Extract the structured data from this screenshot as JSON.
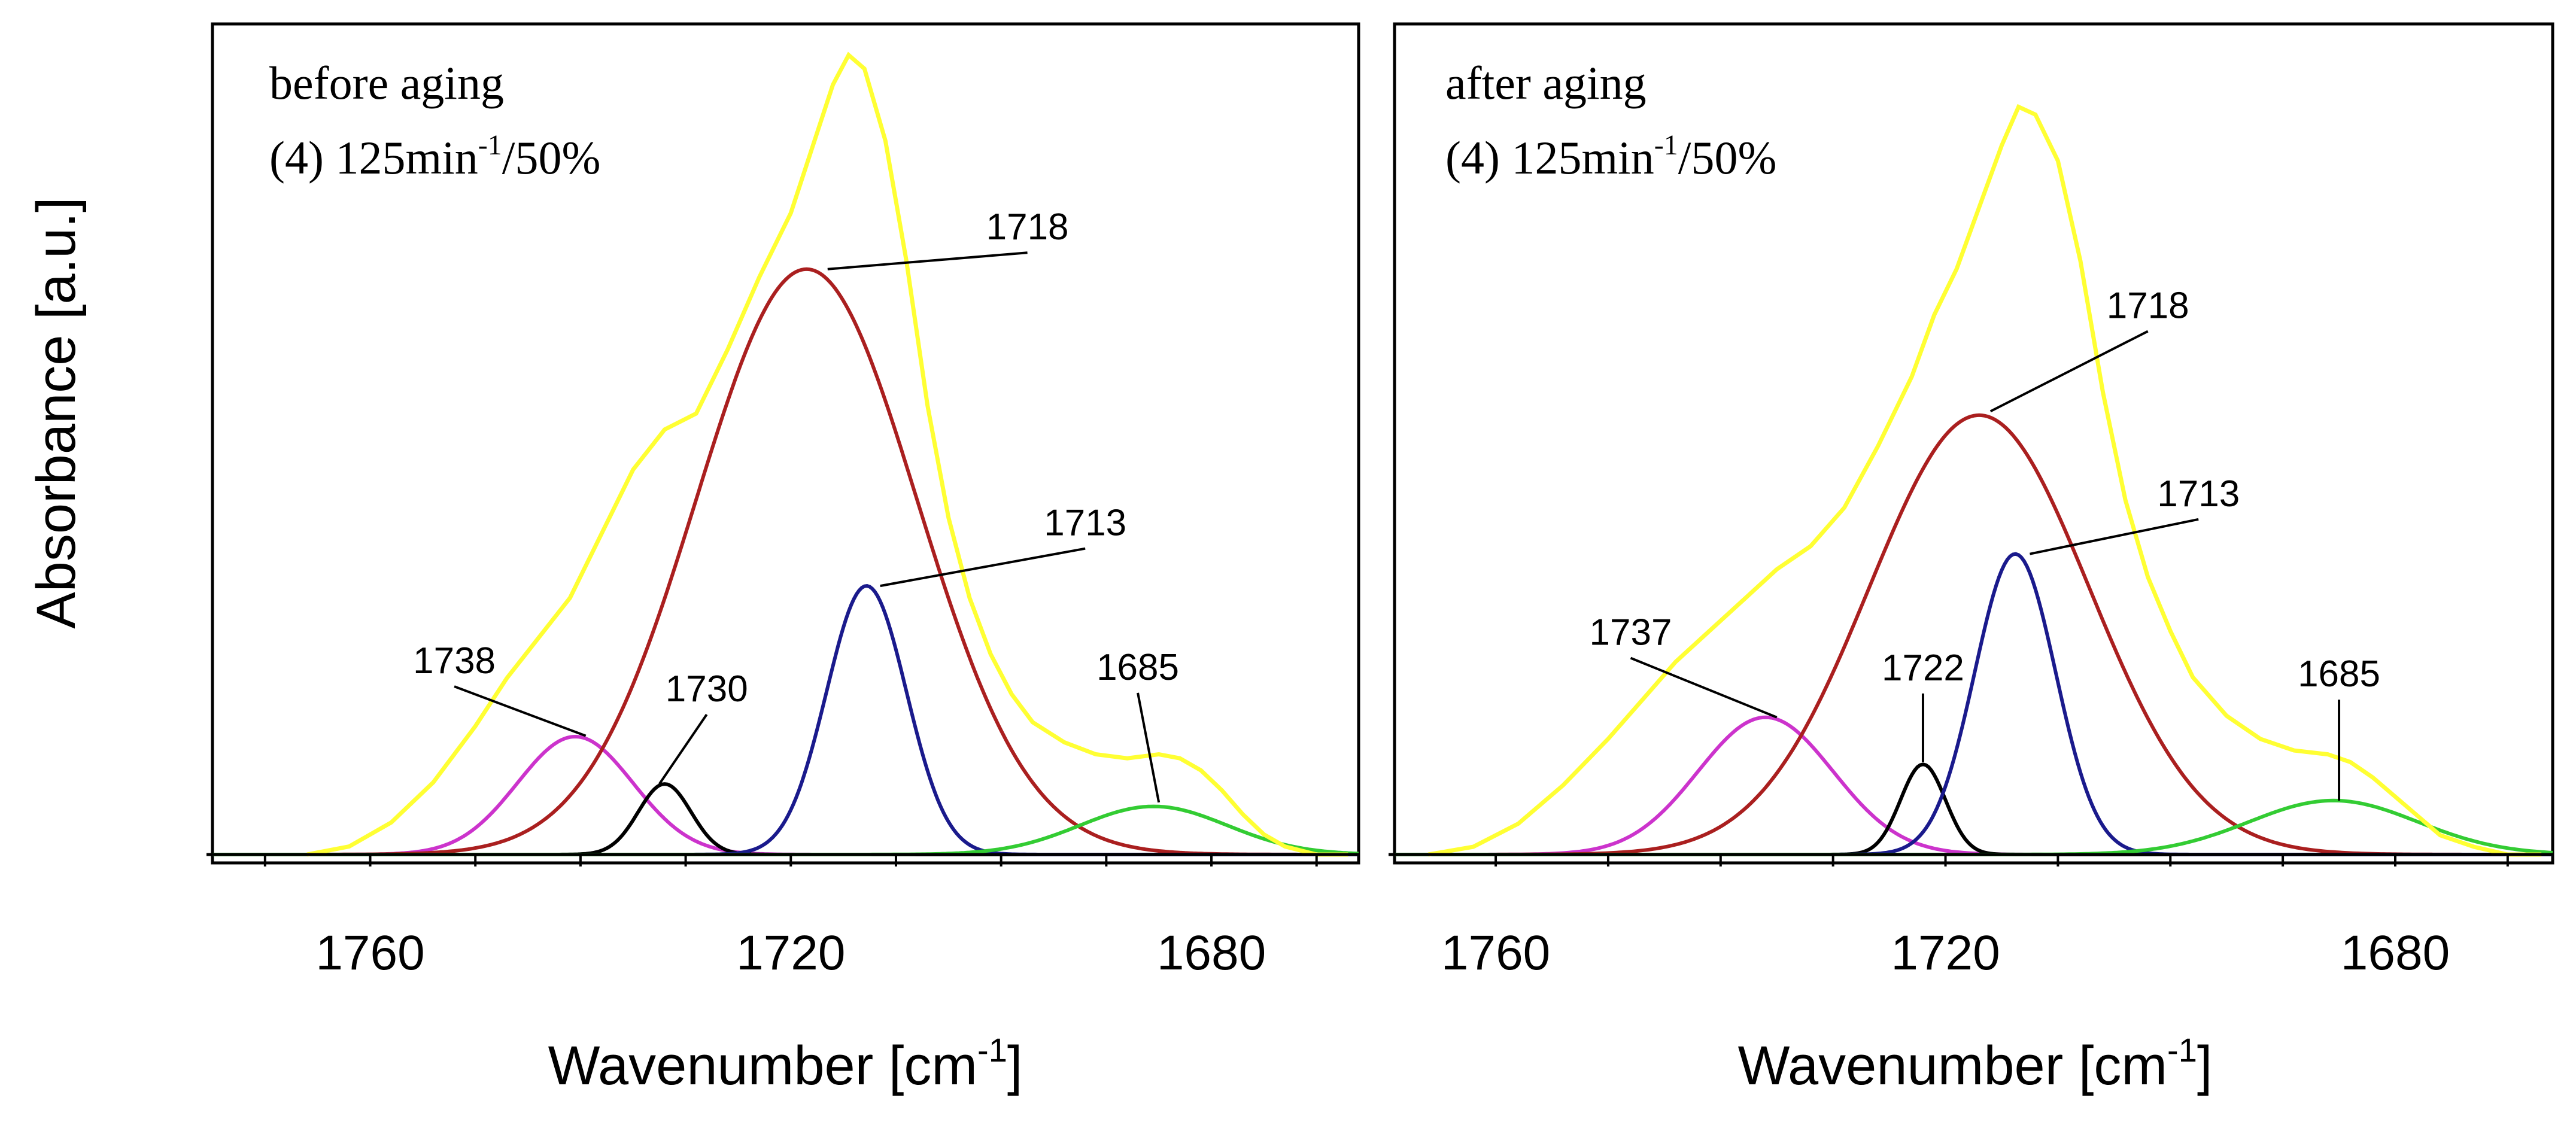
{
  "chart_data": [
    {
      "type": "line",
      "panel": "left",
      "title_line1": "before aging",
      "title_line2_prefix": "(4) 125min",
      "title_line2_sup": "-1",
      "title_line2_suffix": "/50%",
      "xlabel": "Wavenumber [cm",
      "xlabel_sup": "-1",
      "xlabel_close": "]",
      "ylabel": "Absorbance [a.u.]",
      "xlim": [
        1775,
        1666
      ],
      "ylim": [
        0,
        1.0
      ],
      "ticks": [
        1760,
        1720,
        1680
      ],
      "tick_labels": [
        "1760",
        "1720",
        "1680"
      ],
      "envelope": {
        "name": "sum",
        "color": "#ffff33",
        "x": [
          1766,
          1762,
          1758,
          1754,
          1750,
          1747,
          1744,
          1741,
          1738,
          1735,
          1732,
          1729,
          1726,
          1723,
          1720,
          1718,
          1716,
          1714.5,
          1713,
          1711,
          1709,
          1707,
          1705,
          1703,
          1701,
          1699,
          1697,
          1694,
          1691,
          1688,
          1685,
          1683,
          1681,
          1679,
          1677,
          1675,
          1673,
          1670,
          1667
        ],
        "y": [
          0.0,
          0.01,
          0.04,
          0.09,
          0.16,
          0.22,
          0.27,
          0.32,
          0.4,
          0.48,
          0.53,
          0.55,
          0.63,
          0.72,
          0.8,
          0.88,
          0.96,
          0.997,
          0.98,
          0.89,
          0.74,
          0.56,
          0.42,
          0.32,
          0.25,
          0.2,
          0.165,
          0.14,
          0.125,
          0.12,
          0.125,
          0.12,
          0.105,
          0.08,
          0.05,
          0.025,
          0.01,
          0.0,
          0.0
        ]
      },
      "peaks": [
        {
          "name": "1738",
          "center": 1740.5,
          "height": 0.147,
          "width": 5.5,
          "color": "#cc33cc"
        },
        {
          "name": "1730",
          "center": 1732.0,
          "height": 0.088,
          "width": 2.5,
          "color": "#000000"
        },
        {
          "name": "1718",
          "center": 1718.5,
          "height": 0.73,
          "width": 10.5,
          "color": "#aa1f1f"
        },
        {
          "name": "1713",
          "center": 1712.8,
          "height": 0.335,
          "width": 3.8,
          "color": "#1a1a8c"
        },
        {
          "name": "1685",
          "center": 1685.5,
          "height": 0.06,
          "width": 7.0,
          "color": "#33cc33"
        }
      ],
      "annotations": [
        {
          "label": "1738",
          "tip": [
            1739.5,
            0.148
          ],
          "text_at": [
            1752.0,
            0.226
          ]
        },
        {
          "label": "1730",
          "tip": [
            1732.5,
            0.088
          ],
          "text_at": [
            1728.0,
            0.191
          ]
        },
        {
          "label": "1718",
          "tip": [
            1716.5,
            0.73
          ],
          "text_at": [
            1697.5,
            0.767
          ]
        },
        {
          "label": "1713",
          "tip": [
            1711.5,
            0.335
          ],
          "text_at": [
            1692.0,
            0.398
          ]
        },
        {
          "label": "1685",
          "tip": [
            1685.0,
            0.065
          ],
          "text_at": [
            1687.0,
            0.218
          ]
        }
      ]
    },
    {
      "type": "line",
      "panel": "right",
      "title_line1": "after aging",
      "title_line2_prefix": "(4) 125min",
      "title_line2_sup": "-1",
      "title_line2_suffix": "/50%",
      "xlabel": "Wavenumber [cm",
      "xlabel_sup": "-1",
      "xlabel_close": "]",
      "xlim": [
        1769,
        1666
      ],
      "ylim": [
        0,
        1.0
      ],
      "ticks": [
        1760,
        1720,
        1680
      ],
      "tick_labels": [
        "1760",
        "1720",
        "1680"
      ],
      "envelope": {
        "name": "sum",
        "color": "#ffff33",
        "x": [
          1766,
          1762,
          1758,
          1754,
          1750,
          1747,
          1744,
          1741,
          1738,
          1735,
          1732,
          1729,
          1726,
          1723,
          1721,
          1719,
          1717,
          1715,
          1713.5,
          1712,
          1710,
          1708,
          1706,
          1704,
          1702,
          1700,
          1698,
          1695,
          1692,
          1689,
          1686,
          1684,
          1682,
          1680,
          1678,
          1676,
          1673,
          1670,
          1667
        ],
        "y": [
          0.0,
          0.01,
          0.04,
          0.09,
          0.15,
          0.2,
          0.25,
          0.29,
          0.33,
          0.37,
          0.4,
          0.45,
          0.53,
          0.62,
          0.7,
          0.76,
          0.84,
          0.92,
          0.97,
          0.96,
          0.9,
          0.77,
          0.6,
          0.46,
          0.36,
          0.29,
          0.23,
          0.18,
          0.15,
          0.135,
          0.13,
          0.12,
          0.1,
          0.075,
          0.05,
          0.025,
          0.01,
          0.0,
          0.0
        ]
      },
      "peaks": [
        {
          "name": "1737",
          "center": 1736.0,
          "height": 0.178,
          "width": 6.0,
          "color": "#cc33cc"
        },
        {
          "name": "1722",
          "center": 1722.0,
          "height": 0.117,
          "width": 2.0,
          "color": "#000000"
        },
        {
          "name": "1718",
          "center": 1717.0,
          "height": 0.57,
          "width": 9.8,
          "color": "#aa1f1f"
        },
        {
          "name": "1713",
          "center": 1713.8,
          "height": 0.39,
          "width": 3.6,
          "color": "#1a1a8c"
        },
        {
          "name": "1685",
          "center": 1685.5,
          "height": 0.07,
          "width": 7.5,
          "color": "#33cc33"
        }
      ],
      "annotations": [
        {
          "label": "1737",
          "tip": [
            1735.0,
            0.178
          ],
          "text_at": [
            1748.0,
            0.272
          ]
        },
        {
          "label": "1722",
          "tip": [
            1722.0,
            0.12
          ],
          "text_at": [
            1722.0,
            0.226
          ]
        },
        {
          "label": "1718",
          "tip": [
            1716.0,
            0.575
          ],
          "text_at": [
            1702.0,
            0.696
          ]
        },
        {
          "label": "1713",
          "tip": [
            1712.5,
            0.39
          ],
          "text_at": [
            1697.5,
            0.452
          ]
        },
        {
          "label": "1685",
          "tip": [
            1685.0,
            0.07
          ],
          "text_at": [
            1685.0,
            0.218
          ]
        }
      ]
    }
  ]
}
